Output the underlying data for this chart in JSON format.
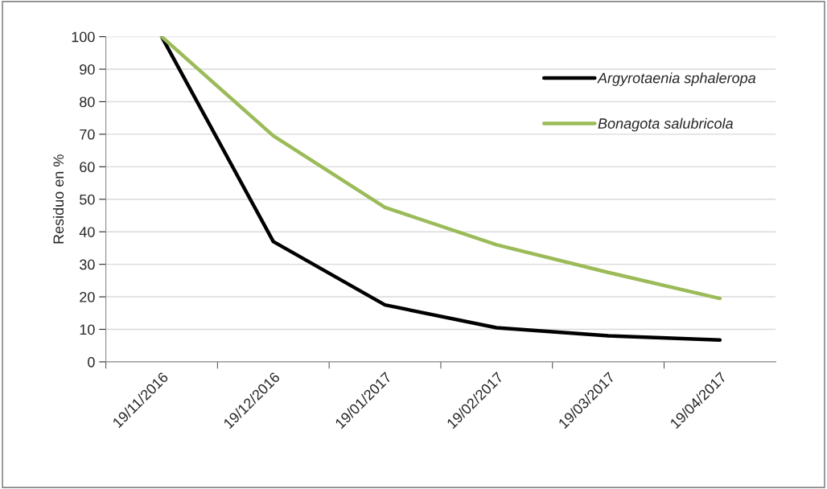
{
  "chart_data": {
    "type": "line",
    "ylabel": "Residuo en %",
    "categories": [
      "19/11/2016",
      "19/12/2016",
      "19/01/2017",
      "19/02/2017",
      "19/03/2017",
      "19/04/2017"
    ],
    "series": [
      {
        "name": "Argyrotaenia sphaleropa",
        "color": "#000000",
        "values": [
          100,
          37,
          17.5,
          10.5,
          8,
          6.7
        ]
      },
      {
        "name": "Bonagota salubricola",
        "color": "#9bbb59",
        "values": [
          100,
          69.5,
          47.5,
          36,
          27.5,
          19.5
        ]
      }
    ],
    "ylim": [
      0,
      100
    ],
    "yticks": [
      0,
      10,
      20,
      30,
      40,
      50,
      60,
      70,
      80,
      90,
      100
    ],
    "grid": "y",
    "legend": "top right",
    "marker": "none",
    "line_style": "solid"
  }
}
